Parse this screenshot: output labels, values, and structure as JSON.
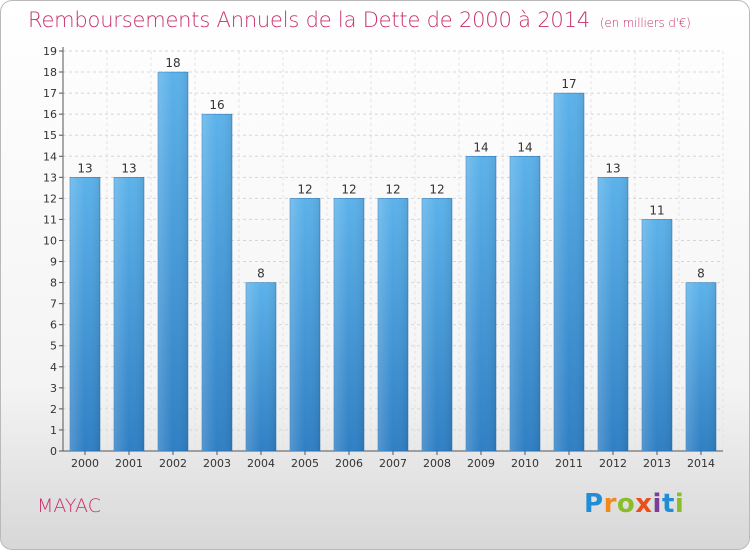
{
  "title": "Remboursements Annuels de la Dette de 2000 à 2014",
  "subtitle": "(en milliers d'€)",
  "commune": "MAYAC",
  "logo": {
    "p": "P",
    "r": "r",
    "o": "o",
    "x": "x",
    "i": "i",
    "t": "t",
    "i2": "i"
  },
  "colors": {
    "bar": "#4a9fe0",
    "title": "#c8316b"
  },
  "chart_data": {
    "type": "bar",
    "title": "Remboursements Annuels de la Dette de 2000 à 2014",
    "subtitle": "(en milliers d'€)",
    "categories": [
      "2000",
      "2001",
      "2002",
      "2003",
      "2004",
      "2005",
      "2006",
      "2007",
      "2008",
      "2009",
      "2010",
      "2011",
      "2012",
      "2013",
      "2014"
    ],
    "values": [
      13,
      13,
      18,
      16,
      8,
      12,
      12,
      12,
      12,
      14,
      14,
      17,
      13,
      11,
      8
    ],
    "ylim": [
      0,
      19
    ],
    "yticks": [
      0,
      1,
      2,
      3,
      4,
      5,
      6,
      7,
      8,
      9,
      10,
      11,
      12,
      13,
      14,
      15,
      16,
      17,
      18,
      19
    ],
    "grid": true,
    "xlabel": "",
    "ylabel": ""
  }
}
